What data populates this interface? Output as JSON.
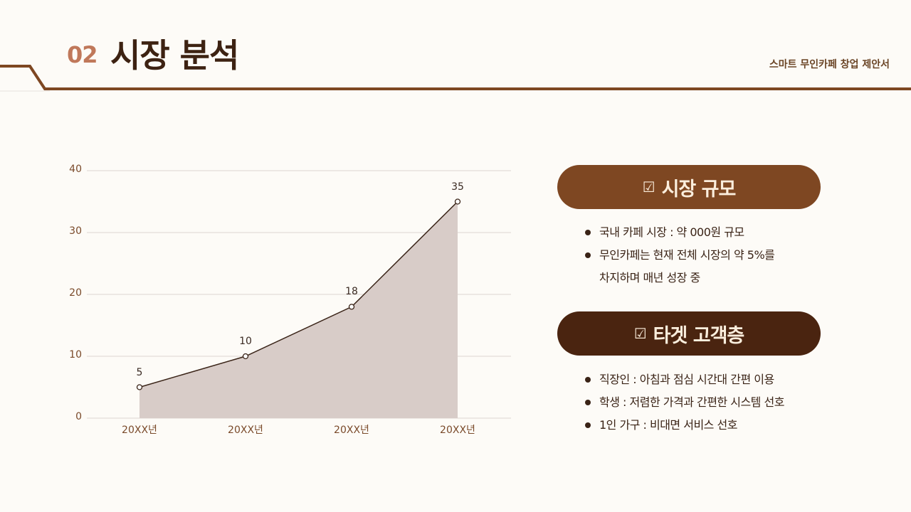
{
  "header": {
    "section_number": "02",
    "section_title": "시장 분석",
    "document_title": "스마트 무인카페 창업 제안서",
    "line_color": "#7e4722"
  },
  "chart_data": {
    "type": "area",
    "title": "",
    "xlabel": "",
    "ylabel": "",
    "categories": [
      "20XX년",
      "20XX년",
      "20XX년",
      "20XX년"
    ],
    "values": [
      5,
      10,
      18,
      35
    ],
    "data_labels": [
      "5",
      "10",
      "18",
      "35"
    ],
    "y_ticks": [
      "0",
      "10",
      "20",
      "30",
      "40"
    ],
    "ylim": [
      0,
      40
    ],
    "grid": true,
    "legend": "none",
    "line_color": "#3a2418",
    "fill_color": "#d8ccc8"
  },
  "sections": [
    {
      "heading": "시장 규모",
      "icon": "checkbox-checked-icon",
      "color": "#7e4722",
      "bullets": [
        "국내 카페 시장 : 약 000원 규모",
        "무인카페는 현재 전체 시장의 약 5%를",
        "차지하며 매년 성장 중"
      ]
    },
    {
      "heading": "타겟 고객층",
      "icon": "checkbox-checked-icon",
      "color": "#4a2410",
      "bullets": [
        "직장인 : 아침과 점심 시간대 간편 이용",
        "학생 : 저렴한 가격과 간편한 시스템 선호",
        "1인 가구 : 비대면 서비스 선호"
      ]
    }
  ]
}
